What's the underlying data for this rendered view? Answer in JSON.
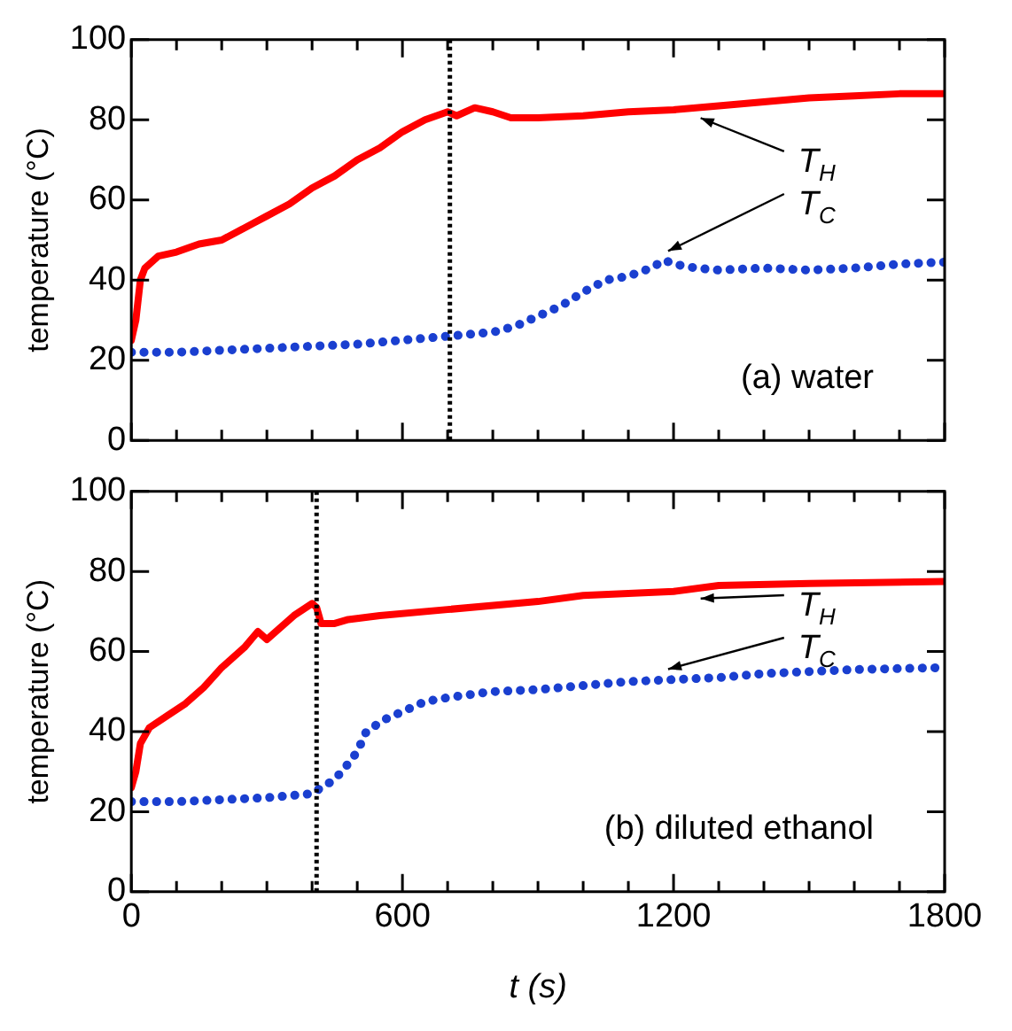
{
  "chart_data": [
    {
      "type": "line",
      "ylabel": "temperature (°C)",
      "xlim": [
        0,
        1800
      ],
      "ylim": [
        0,
        100
      ],
      "xticks": [
        0,
        {
          "value": 100,
          "label": null
        },
        {
          "value": 200,
          "label": null
        },
        {
          "value": 300,
          "label": null
        },
        {
          "value": 400,
          "label": null
        },
        {
          "value": 500,
          "label": null
        },
        600,
        {
          "value": 700,
          "label": null
        },
        {
          "value": 800,
          "label": null
        },
        {
          "value": 900,
          "label": null
        },
        {
          "value": 1000,
          "label": null
        },
        {
          "value": 1100,
          "label": null
        },
        1200,
        {
          "value": 1300,
          "label": null
        },
        {
          "value": 1400,
          "label": null
        },
        {
          "value": 1500,
          "label": null
        },
        {
          "value": 1600,
          "label": null
        },
        {
          "value": 1700,
          "label": null
        },
        1800
      ],
      "yticks": [
        0,
        20,
        40,
        60,
        80,
        100
      ],
      "tick_labels": "y",
      "grid": false,
      "legend": false,
      "annotations": [
        "(a) water"
      ],
      "ref_lines": [
        {
          "axis": "x",
          "value": 705,
          "color": "#000000",
          "line_style": "dotted"
        }
      ],
      "series": [
        {
          "name": "T$_{H}$",
          "color": "#ff0000",
          "marker": "none",
          "line_style": "solid",
          "x": [
            0,
            10,
            20,
            30,
            60,
            100,
            150,
            200,
            250,
            300,
            350,
            400,
            450,
            500,
            550,
            600,
            650,
            700,
            720,
            760,
            800,
            840,
            900,
            1000,
            1100,
            1200,
            1300,
            1400,
            1500,
            1600,
            1700,
            1800
          ],
          "values": [
            25,
            30,
            40,
            43,
            46,
            47,
            49,
            50,
            53,
            56,
            59,
            63,
            66,
            70,
            73,
            77,
            80,
            82,
            81,
            83,
            82,
            80.5,
            80.5,
            81,
            82,
            82.5,
            83.5,
            84.5,
            85.5,
            86,
            86.5,
            86.5
          ]
        },
        {
          "name": "T$_{C}$",
          "color": "#1a3fd0",
          "marker": "none",
          "line_style": "dotted",
          "x": [
            0,
            100,
            200,
            300,
            400,
            500,
            600,
            700,
            800,
            850,
            900,
            950,
            1000,
            1050,
            1100,
            1150,
            1180,
            1200,
            1250,
            1300,
            1400,
            1500,
            1600,
            1700,
            1800
          ],
          "values": [
            22,
            22,
            22.5,
            23,
            23.5,
            24,
            25,
            26,
            27,
            28.5,
            31,
            33.5,
            37,
            40,
            41,
            43,
            45,
            44,
            43,
            42.5,
            43,
            42.5,
            43,
            44,
            44.5
          ]
        }
      ]
    },
    {
      "type": "line",
      "ylabel": "temperature (°C)",
      "xlabel": "t (s)",
      "xlim": [
        0,
        1800
      ],
      "ylim": [
        0,
        100
      ],
      "xticks": [
        0,
        {
          "value": 100,
          "label": null
        },
        {
          "value": 200,
          "label": null
        },
        {
          "value": 300,
          "label": null
        },
        {
          "value": 400,
          "label": null
        },
        {
          "value": 500,
          "label": null
        },
        600,
        {
          "value": 700,
          "label": null
        },
        {
          "value": 800,
          "label": null
        },
        {
          "value": 900,
          "label": null
        },
        {
          "value": 1000,
          "label": null
        },
        {
          "value": 1100,
          "label": null
        },
        1200,
        {
          "value": 1300,
          "label": null
        },
        {
          "value": 1400,
          "label": null
        },
        {
          "value": 1500,
          "label": null
        },
        {
          "value": 1600,
          "label": null
        },
        {
          "value": 1700,
          "label": null
        },
        1800
      ],
      "yticks": [
        0,
        20,
        40,
        60,
        80,
        100
      ],
      "grid": false,
      "legend": false,
      "annotations": [
        "(b) diluted ethanol"
      ],
      "ref_lines": [
        {
          "axis": "x",
          "value": 410,
          "color": "#000000",
          "line_style": "dotted"
        }
      ],
      "series": [
        {
          "name": "T$_{H}$",
          "color": "#ff0000",
          "marker": "none",
          "line_style": "solid",
          "x": [
            0,
            10,
            20,
            40,
            80,
            120,
            160,
            200,
            250,
            280,
            300,
            330,
            360,
            400,
            410,
            420,
            450,
            480,
            550,
            700,
            900,
            1000,
            1200,
            1300,
            1500,
            1800
          ],
          "values": [
            26,
            30,
            37,
            41,
            44,
            47,
            51,
            56,
            61,
            65,
            63,
            66,
            69,
            72,
            71,
            67,
            67,
            68,
            69,
            70.5,
            72.5,
            74,
            75,
            76.5,
            77,
            77.5
          ]
        },
        {
          "name": "T$_{C}$",
          "color": "#1a3fd0",
          "marker": "none",
          "line_style": "dotted",
          "x": [
            0,
            100,
            200,
            300,
            400,
            420,
            450,
            480,
            500,
            520,
            560,
            600,
            650,
            700,
            800,
            900,
            1000,
            1100,
            1200,
            1300,
            1400,
            1500,
            1600,
            1800
          ],
          "values": [
            22.5,
            22.5,
            23,
            23.5,
            24.5,
            26,
            28,
            32,
            35,
            40,
            43,
            45,
            47.5,
            48.5,
            50,
            50.5,
            51.5,
            52.5,
            53,
            53.5,
            54.5,
            55,
            55.5,
            56
          ]
        }
      ]
    }
  ]
}
